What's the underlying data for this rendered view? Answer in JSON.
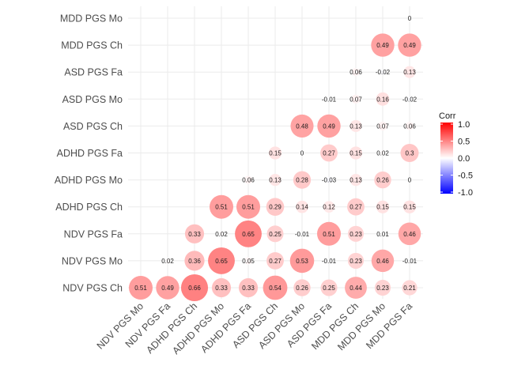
{
  "chart_data": {
    "type": "scatter",
    "subtype": "correlation-matrix-circles",
    "title": "",
    "legend": {
      "title": "Corr",
      "ticks": [
        "1.0",
        "0.5",
        "0.0",
        "-0.5",
        "-1.0"
      ],
      "range": [
        -1,
        1
      ],
      "placement": "right",
      "colors": {
        "high": "#FF0000",
        "mid": "#FFFFFF",
        "low": "#0000FF"
      }
    },
    "x_labels": [
      "NDV PGS Mo",
      "NDV PGS Fa",
      "ADHD PGS Ch",
      "ADHD PGS Mo",
      "ADHD PGS Fa",
      "ASD PGS Ch",
      "ASD PGS Mo",
      "ASD PGS Fa",
      "MDD PGS Ch",
      "MDD PGS Mo",
      "MDD PGS Fa"
    ],
    "y_labels": [
      "MDD PGS Mo",
      "MDD PGS Ch",
      "ASD PGS Fa",
      "ASD PGS Mo",
      "ASD PGS Ch",
      "ADHD PGS Fa",
      "ADHD PGS Mo",
      "ADHD PGS Ch",
      "NDV PGS Fa",
      "NDV PGS Mo",
      "NDV PGS Ch"
    ],
    "matrix": [
      [
        null,
        null,
        null,
        null,
        null,
        null,
        null,
        null,
        null,
        null,
        0
      ],
      [
        null,
        null,
        null,
        null,
        null,
        null,
        null,
        null,
        null,
        0.49,
        0.49
      ],
      [
        null,
        null,
        null,
        null,
        null,
        null,
        null,
        null,
        0.06,
        -0.02,
        0.13
      ],
      [
        null,
        null,
        null,
        null,
        null,
        null,
        null,
        -0.01,
        0.07,
        0.16,
        -0.02
      ],
      [
        null,
        null,
        null,
        null,
        null,
        null,
        0.48,
        0.49,
        0.13,
        0.07,
        0.06
      ],
      [
        null,
        null,
        null,
        null,
        null,
        0.15,
        0,
        0.27,
        0.15,
        0.02,
        0.3
      ],
      [
        null,
        null,
        null,
        null,
        0.06,
        0.13,
        0.28,
        -0.03,
        0.13,
        0.26,
        0
      ],
      [
        null,
        null,
        null,
        0.51,
        0.51,
        0.29,
        0.14,
        0.12,
        0.27,
        0.15,
        0.15
      ],
      [
        null,
        null,
        0.33,
        0.02,
        0.65,
        0.25,
        -0.01,
        0.51,
        0.23,
        0.01,
        0.46
      ],
      [
        null,
        0.02,
        0.36,
        0.65,
        0.05,
        0.27,
        0.53,
        -0.01,
        0.23,
        0.46,
        -0.01
      ],
      [
        0.51,
        0.49,
        0.66,
        0.33,
        0.33,
        0.54,
        0.26,
        0.25,
        0.44,
        0.23,
        0.21
      ]
    ]
  }
}
